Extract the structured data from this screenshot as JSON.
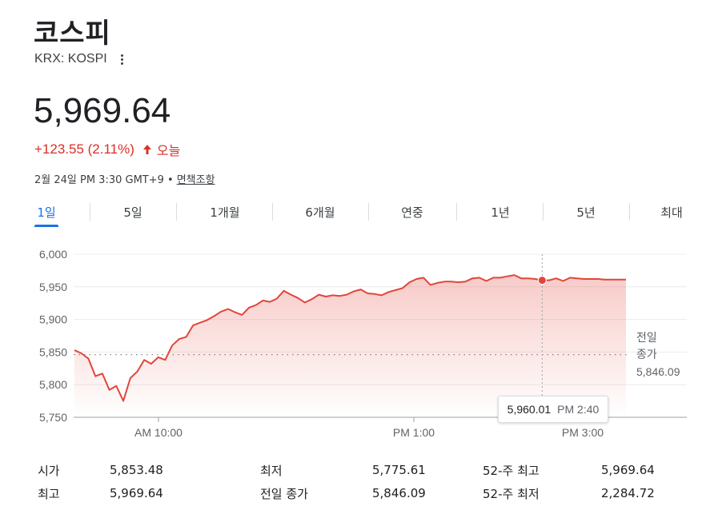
{
  "header": {
    "title": "코스피",
    "ticker": "KRX: KOSPI",
    "price": "5,969.64",
    "change": "+123.55 (2.11%)",
    "today_label": "오늘",
    "timestamp": "2월 24일 PM 3:30 GMT+9 •",
    "disclaimer": "면책조항"
  },
  "tabs": [
    {
      "label": "1일",
      "active": true
    },
    {
      "label": "5일"
    },
    {
      "label": "1개월"
    },
    {
      "label": "6개월"
    },
    {
      "label": "연중"
    },
    {
      "label": "1년"
    },
    {
      "label": "5년"
    },
    {
      "label": "최대"
    }
  ],
  "colors": {
    "accent": "#1a73e8",
    "negative_up_red": "#d93025",
    "line": "#e2453a"
  },
  "chart_data": {
    "type": "area",
    "x_tick_labels": [
      "AM 10:00",
      "PM 1:00",
      "PM 3:00"
    ],
    "y_tick_labels": [
      "6,000",
      "5,950",
      "5,900",
      "5,850",
      "5,800",
      "5,750"
    ],
    "ylim": [
      5750,
      6000
    ],
    "grid": true,
    "previous_close": {
      "label_line1": "전일",
      "label_line2": "종가",
      "value": 5846.09,
      "value_label": "5,846.09"
    },
    "tooltip": {
      "value": "5,960.01",
      "time": "PM 2:40"
    },
    "series": [
      {
        "values": [
          5853,
          5848,
          5840,
          5813,
          5817,
          5792,
          5798,
          5775,
          5810,
          5820,
          5838,
          5832,
          5842,
          5838,
          5860,
          5870,
          5873,
          5891,
          5895,
          5899,
          5905,
          5912,
          5916,
          5911,
          5907,
          5918,
          5922,
          5929,
          5927,
          5932,
          5944,
          5938,
          5933,
          5926,
          5931,
          5938,
          5935,
          5937,
          5936,
          5938,
          5943,
          5946,
          5940,
          5939,
          5937,
          5942,
          5945,
          5948,
          5957,
          5962,
          5964,
          5953,
          5956,
          5958,
          5958,
          5957,
          5958,
          5963,
          5964,
          5959,
          5964,
          5964,
          5966,
          5968,
          5963,
          5963,
          5962,
          5960,
          5960,
          5963,
          5959,
          5964,
          5963,
          5962,
          5962,
          5962,
          5961,
          5961,
          5961,
          5961
        ]
      }
    ]
  },
  "stats": {
    "open_label": "시가",
    "open": "5,853.48",
    "high_label": "최고",
    "high": "5,969.64",
    "low_label": "최저",
    "low": "5,775.61",
    "prev_close_label": "전일 종가",
    "prev_close": "5,846.09",
    "wk52_high_label": "52-주 최고",
    "wk52_high": "5,969.64",
    "wk52_low_label": "52-주 최저",
    "wk52_low": "2,284.72"
  }
}
